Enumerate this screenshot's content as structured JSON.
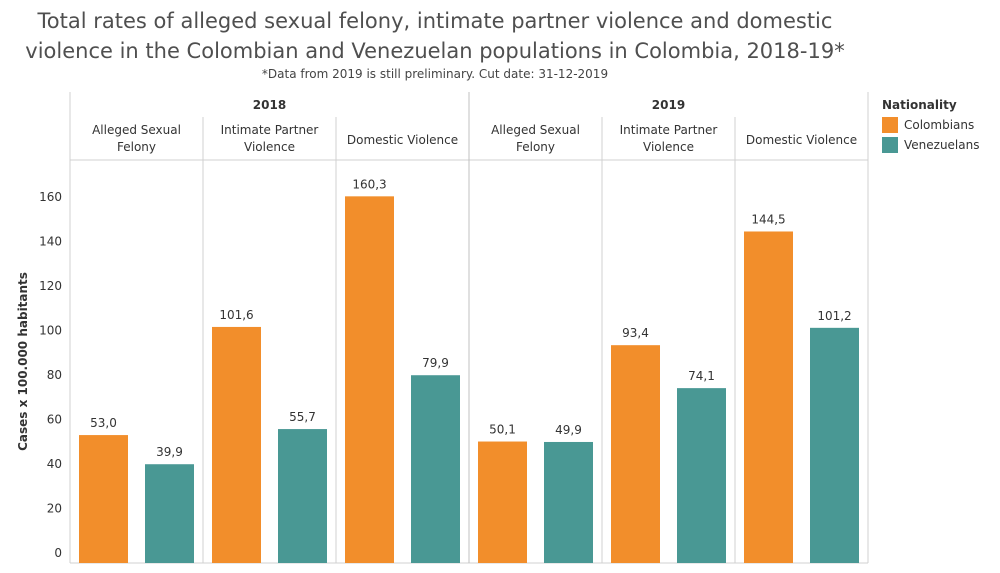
{
  "title_line1": "Total rates of alleged sexual felony, intimate partner violence and domestic",
  "title_line2": "violence in the Colombian and Venezuelan populations in Colombia, 2018-19*",
  "subtitle": "*Data from 2019 is still preliminary. Cut date: 31-12-2019",
  "legend": {
    "title": "Nationality",
    "items": [
      {
        "label": "Colombians",
        "color": "#f28e2b"
      },
      {
        "label": "Venezuelans",
        "color": "#499894"
      }
    ]
  },
  "chart_data": {
    "type": "bar",
    "ylabel": "Cases x 100.000 habitants",
    "ylim": [
      0,
      170
    ],
    "yticks": [
      "0",
      "20",
      "40",
      "60",
      "80",
      "100",
      "120",
      "140",
      "160"
    ],
    "grid": false,
    "legend_position": "top-right",
    "groups": [
      {
        "year": "2018",
        "categories": [
          {
            "label_lines": [
              "Alleged Sexual",
              "Felony"
            ],
            "values": [
              53.0,
              39.9
            ],
            "labels": [
              "53,0",
              "39,9"
            ]
          },
          {
            "label_lines": [
              "Intimate Partner",
              "Violence"
            ],
            "values": [
              101.6,
              55.7
            ],
            "labels": [
              "101,6",
              "55,7"
            ]
          },
          {
            "label_lines": [
              "Domestic Violence"
            ],
            "values": [
              160.3,
              79.9
            ],
            "labels": [
              "160,3",
              "79,9"
            ]
          }
        ]
      },
      {
        "year": "2019",
        "categories": [
          {
            "label_lines": [
              "Alleged Sexual",
              "Felony"
            ],
            "values": [
              50.1,
              49.9
            ],
            "labels": [
              "50,1",
              "49,9"
            ]
          },
          {
            "label_lines": [
              "Intimate Partner",
              "Violence"
            ],
            "values": [
              93.4,
              74.1
            ],
            "labels": [
              "93,4",
              "74,1"
            ]
          },
          {
            "label_lines": [
              "Domestic Violence"
            ],
            "values": [
              144.5,
              101.2
            ],
            "labels": [
              "144,5",
              "101,2"
            ]
          }
        ]
      }
    ],
    "series": [
      {
        "name": "Colombians",
        "color": "#f28e2b"
      },
      {
        "name": "Venezuelans",
        "color": "#499894"
      }
    ]
  }
}
